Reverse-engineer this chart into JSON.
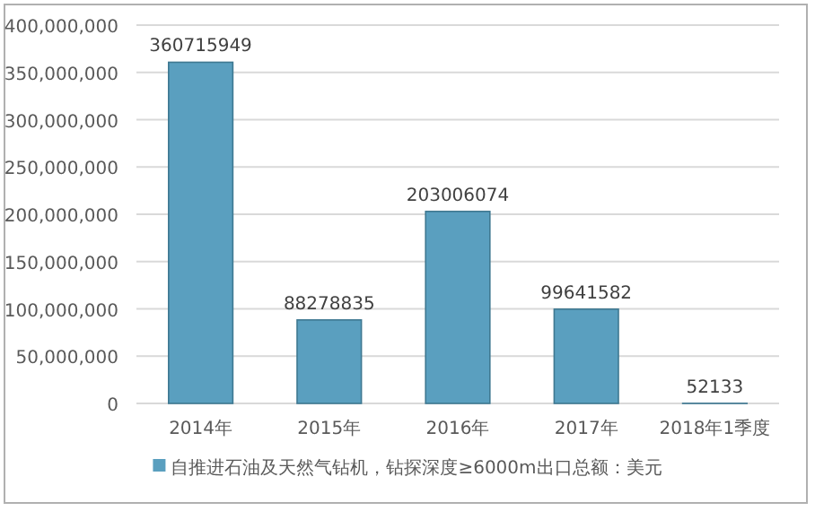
{
  "chart_data": {
    "type": "bar",
    "categories": [
      "2014年",
      "2015年",
      "2016年",
      "2017年",
      "2018年1季度"
    ],
    "series": [
      {
        "name": "自推进石油及天然气钻机，钻探深度≥6000m出口总额：美元",
        "color": "#5a9fbf",
        "values": [
          360715949,
          88278835,
          203006074,
          99641582,
          52133
        ]
      }
    ],
    "ylim": [
      0,
      400000000
    ],
    "yticks": [
      {
        "value": 0,
        "label": "0"
      },
      {
        "value": 50000000,
        "label": "50,000,000"
      },
      {
        "value": 100000000,
        "label": "100,000,000"
      },
      {
        "value": 150000000,
        "label": "150,000,000"
      },
      {
        "value": 200000000,
        "label": "200,000,000"
      },
      {
        "value": 250000000,
        "label": "250,000,000"
      },
      {
        "value": 300000000,
        "label": "300,000,000"
      },
      {
        "value": 350000000,
        "label": "350,000,000"
      },
      {
        "value": 400000000,
        "label": "400,000,000"
      }
    ],
    "grid": "y",
    "legend": "bottom",
    "data_labels": true
  }
}
